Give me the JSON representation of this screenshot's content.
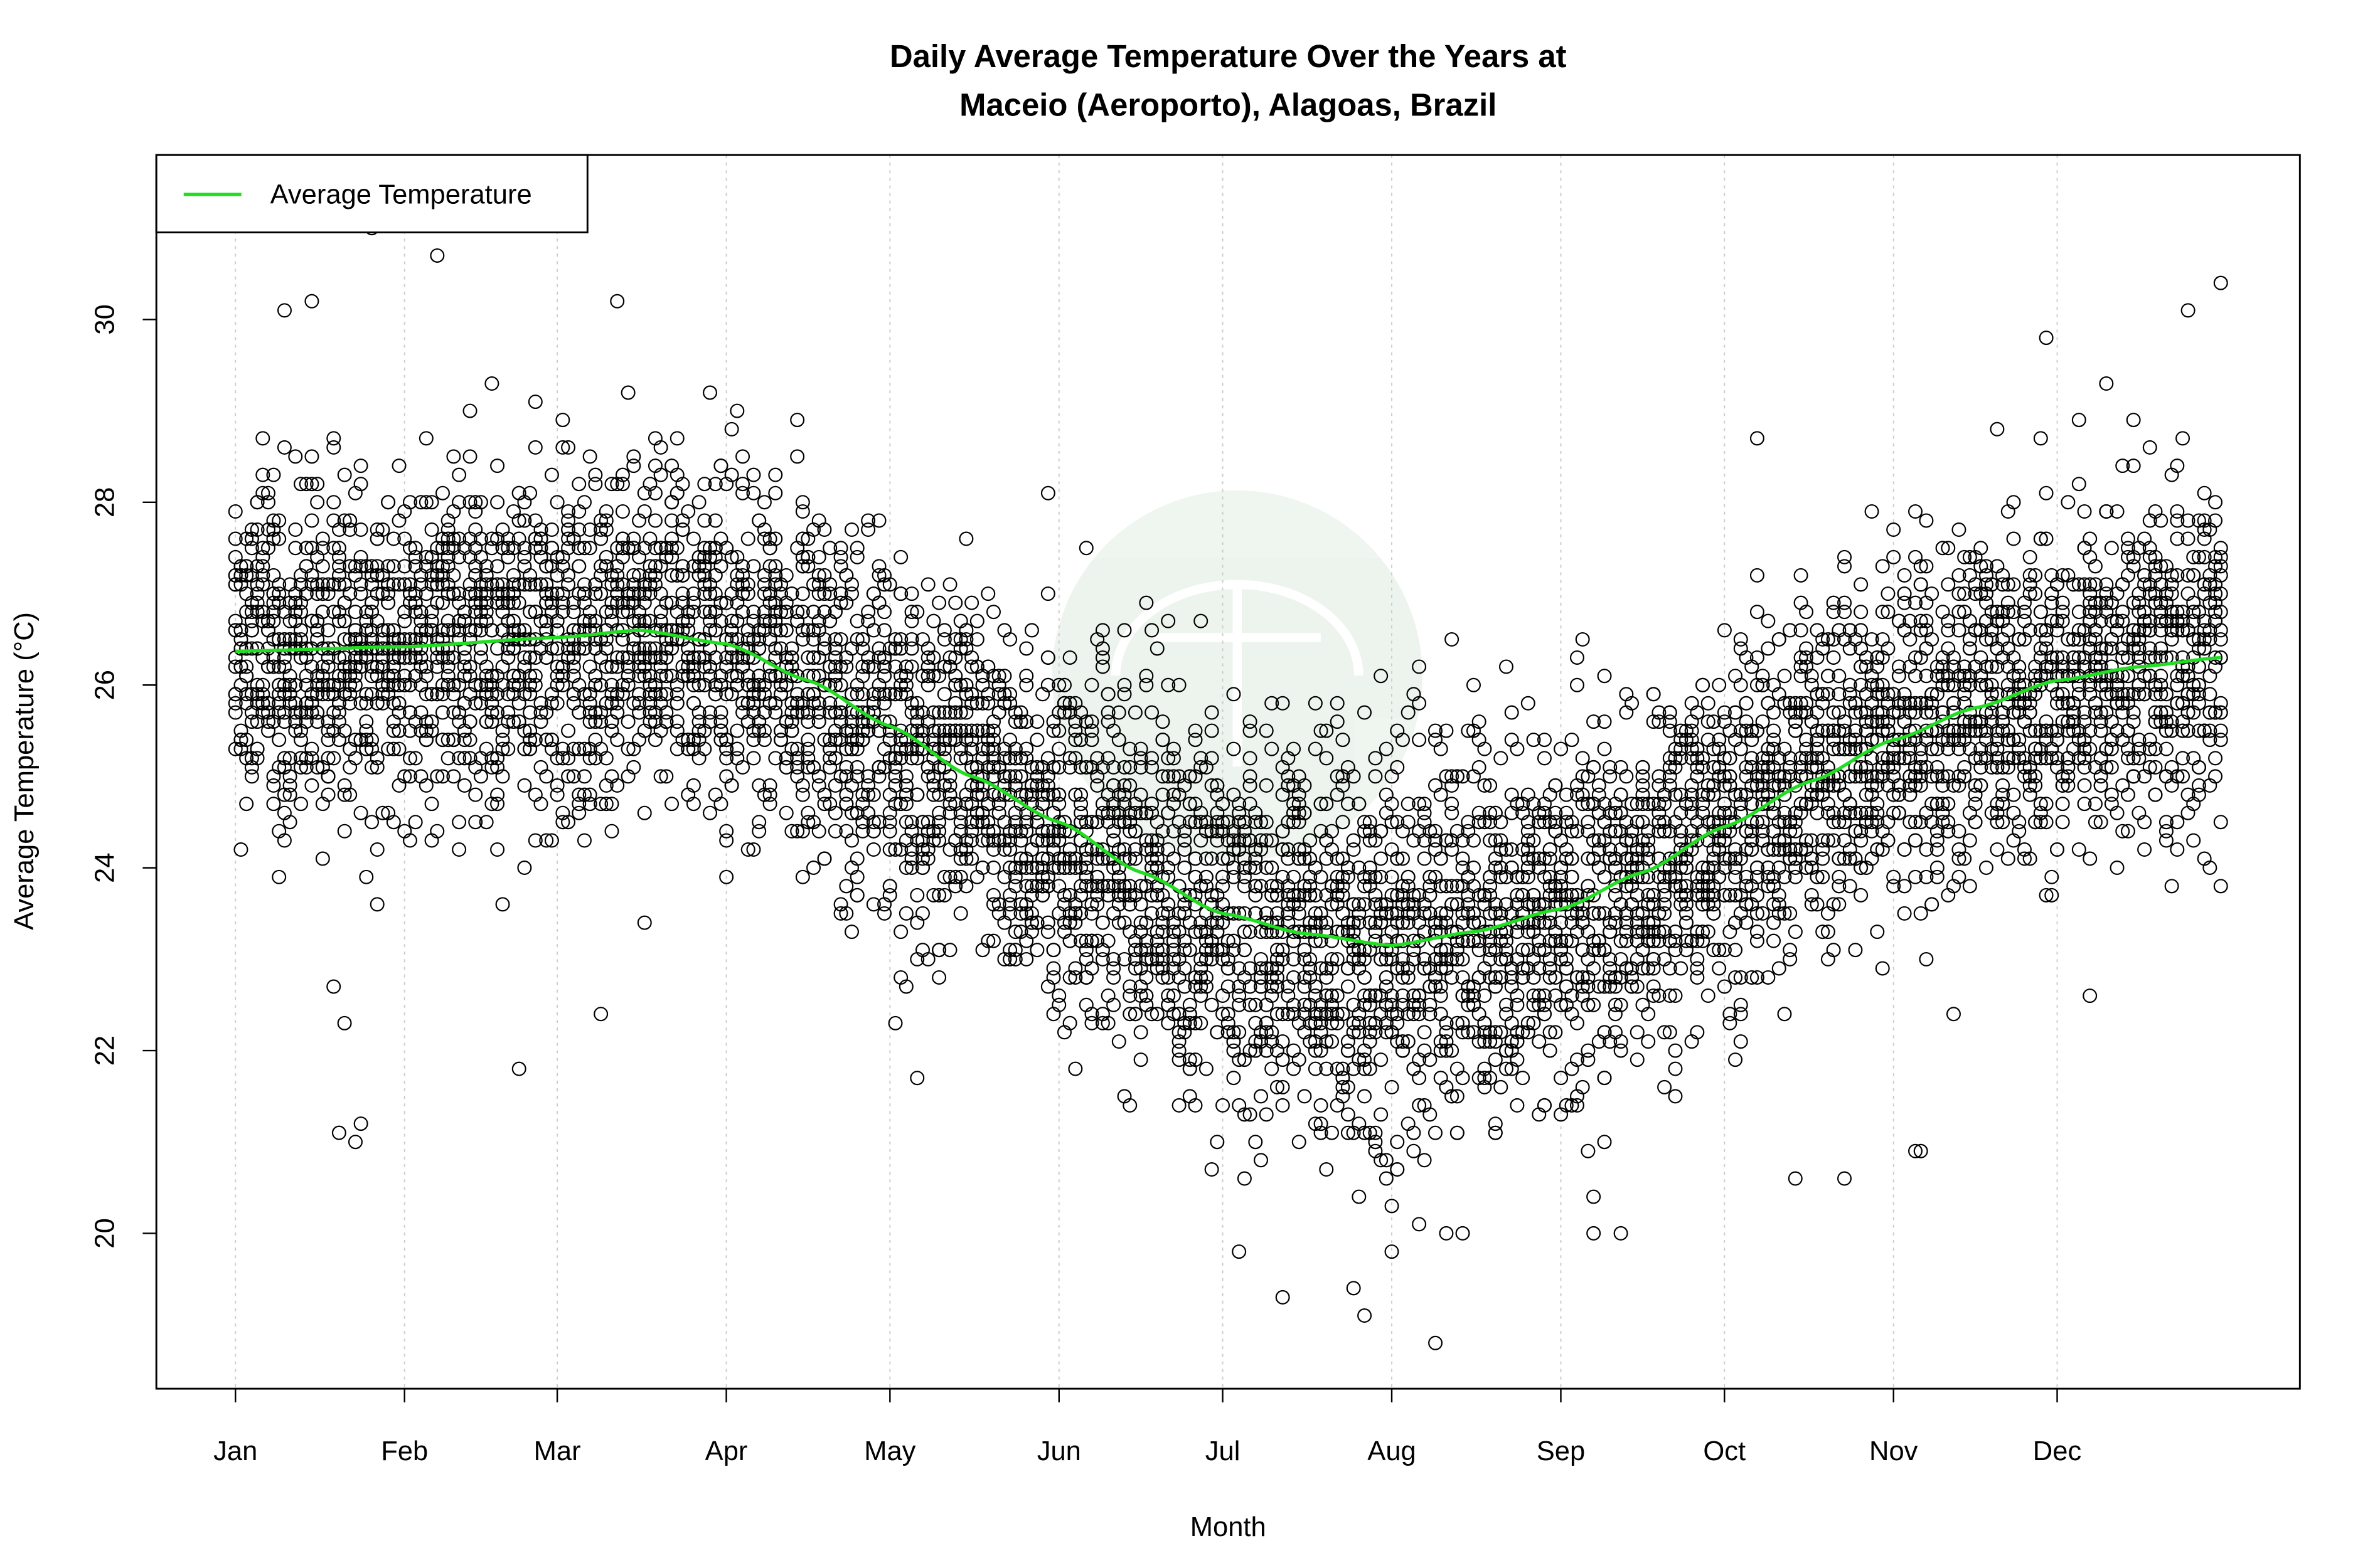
{
  "chart_data": {
    "type": "scatter",
    "title": [
      "Daily Average Temperature Over the Years at",
      "Maceio (Aeroporto), Alagoas, Brazil"
    ],
    "xlabel": "Month",
    "ylabel": "Average Temperature (°C)",
    "x_unit": "day of year",
    "xlim": [
      -13.5,
      379.5
    ],
    "ylim": [
      18.3,
      31.8
    ],
    "x_ticks": [
      {
        "label": "Jan",
        "day": 1
      },
      {
        "label": "Feb",
        "day": 32
      },
      {
        "label": "Mar",
        "day": 60
      },
      {
        "label": "Apr",
        "day": 91
      },
      {
        "label": "May",
        "day": 121
      },
      {
        "label": "Jun",
        "day": 152
      },
      {
        "label": "Jul",
        "day": 182
      },
      {
        "label": "Aug",
        "day": 213
      },
      {
        "label": "Sep",
        "day": 244
      },
      {
        "label": "Oct",
        "day": 274
      },
      {
        "label": "Nov",
        "day": 305
      },
      {
        "label": "Dec",
        "day": 335
      }
    ],
    "y_ticks": [
      20,
      22,
      24,
      26,
      28,
      30
    ],
    "grid": "vertical dotted at month ticks",
    "legend": {
      "position": "top-left",
      "entries": [
        {
          "label": "Average Temperature",
          "color": "#22dd22"
        }
      ]
    },
    "series": [
      {
        "name": "Average Temperature",
        "kind": "line",
        "color": "#22dd22",
        "x": [
          1,
          32,
          60,
          75,
          91,
          106,
          121,
          136,
          152,
          167,
          182,
          197,
          213,
          228,
          244,
          259,
          274,
          290,
          305,
          320,
          335,
          350,
          365
        ],
        "y": [
          26.37,
          26.42,
          26.52,
          26.6,
          26.45,
          26.05,
          25.55,
          25.0,
          24.5,
          23.95,
          23.5,
          23.28,
          23.15,
          23.3,
          23.55,
          23.95,
          24.45,
          24.95,
          25.4,
          25.75,
          26.05,
          26.2,
          26.3
        ]
      },
      {
        "kind": "scatter",
        "marker": "open-circle",
        "color": "#000000",
        "spread_sd": 1.0,
        "notable_points": [
          [
            26,
            31.0
          ],
          [
            38,
            30.7
          ],
          [
            10,
            30.1
          ],
          [
            15,
            30.2
          ],
          [
            71,
            30.2
          ],
          [
            365,
            30.4
          ],
          [
            359,
            30.1
          ],
          [
            333,
            29.8
          ],
          [
            221,
            18.8
          ],
          [
            193,
            19.3
          ],
          [
            208,
            19.1
          ],
          [
            206,
            19.4
          ],
          [
            213,
            19.8
          ],
          [
            185,
            19.8
          ],
          [
            20,
            21.1
          ],
          [
            23,
            21.0
          ],
          [
            24,
            21.2
          ],
          [
            250,
            20.0
          ],
          [
            255,
            20.0
          ],
          [
            287,
            20.6
          ],
          [
            296,
            20.6
          ],
          [
            309,
            20.9
          ],
          [
            310,
            20.9
          ],
          [
            68,
            22.4
          ],
          [
            53,
            21.8
          ],
          [
            122,
            22.3
          ],
          [
            341,
            22.6
          ],
          [
            150,
            28.1
          ],
          [
            280,
            28.7
          ],
          [
            324,
            28.8
          ],
          [
            19,
            22.7
          ],
          [
            21,
            22.3
          ],
          [
            126,
            21.7
          ],
          [
            226,
            20.0
          ],
          [
            223,
            20.0
          ]
        ]
      }
    ]
  }
}
